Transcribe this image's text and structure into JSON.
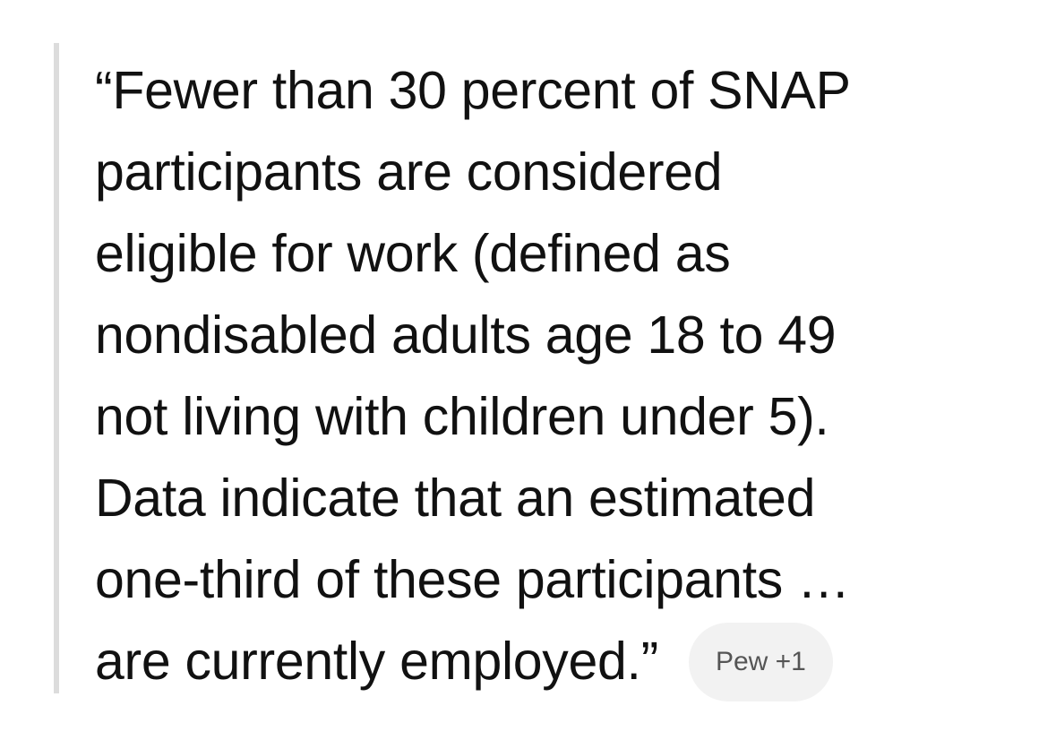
{
  "quote": {
    "lines": [
      "“Fewer than 30 percent of SNAP",
      "participants are considered",
      "eligible for work (defined as",
      "nondisabled adults age 18 to 49",
      "not living with children under 5).",
      "Data indicate that an estimated",
      "one-third of these participants …",
      "are currently employed.”"
    ]
  },
  "citation": {
    "label": "Pew +1"
  }
}
